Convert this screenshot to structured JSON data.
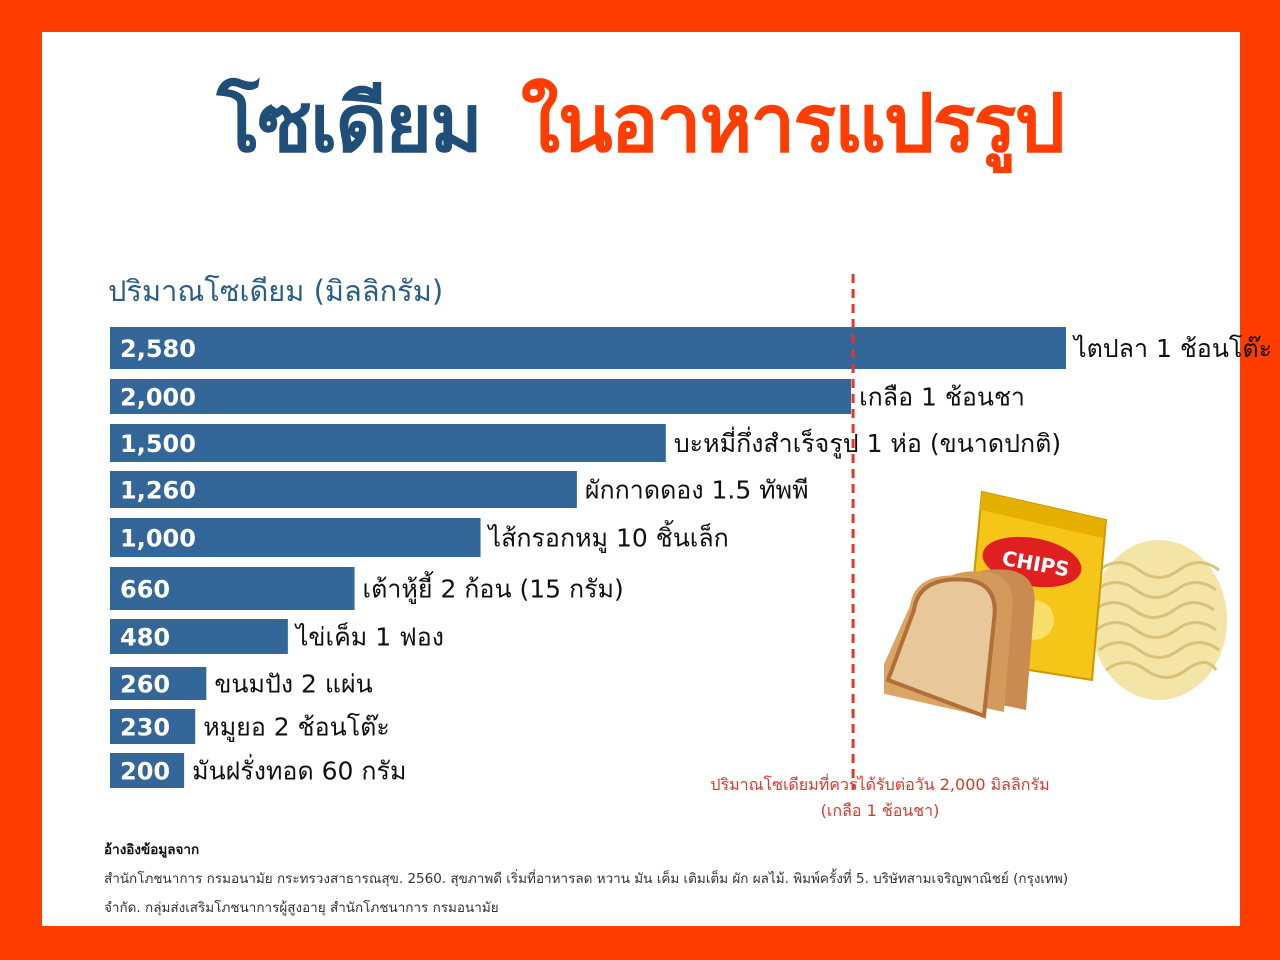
{
  "title": {
    "part1": "โซเดียม",
    "part2": "ในอาหารแปรรูป"
  },
  "chart_data": {
    "type": "bar",
    "orientation": "horizontal",
    "ylabel": "ปริมาณโซเดียม (มิลลิกรัม)",
    "categories": [
      "ไตปลา 1 ช้อนโต๊ะ",
      "เกลือ 1 ช้อนชา",
      "บะหมี่กึ่งสำเร็จรูป  1 ห่อ (ขนาดปกติ)",
      "ผักกาดดอง 1.5 ทัพพี",
      "ไส้กรอกหมู 10 ชิ้นเล็ก",
      "เต้าหู้ยี้ 2 ก้อน (15 กรัม)",
      "ไข่เค็ม 1 ฟอง",
      "ขนมปัง 2 แผ่น",
      "หมูยอ 2 ช้อนโต๊ะ",
      "มันฝรั่งทอด 60 กรัม"
    ],
    "values": [
      2580,
      2000,
      1500,
      1260,
      1000,
      660,
      480,
      260,
      230,
      200
    ],
    "value_labels": [
      "2,580",
      "2,000",
      "1,500",
      "1,260",
      "1,000",
      "660",
      "480",
      "260",
      "230",
      "200"
    ],
    "reference_line": {
      "value": 2000,
      "label_line1": "ปริมาณโซเดียมที่ควรได้รับต่อวัน 2,000 มิลลิกรัม",
      "label_line2": "(เกลือ 1 ช้อนชา)"
    },
    "xlim": [
      0,
      2580
    ]
  },
  "image_text": {
    "chips": "CHIPS"
  },
  "source": {
    "heading": "อ้างอิงข้อมูลจาก",
    "line1": "สำนักโภชนาการ กรมอนามัย กระทรวงสาธารณสุข. 2560. สุขภาพดี เริ่มที่อาหารลด หวาน มัน เค็ม เติมเต็ม ผัก ผลไม้. พิมพ์ครั้งที่ 5. บริษัทสามเจริญพาณิชย์ (กรุงเทพ)",
    "line2": "จำกัด. กลุ่มส่งเสริมโภชนาการผู้สูงอายุ สำนักโภชนาการ กรมอนามัย"
  },
  "colors": {
    "background": "#ff3d00",
    "bar": "#336699",
    "title_blue": "#1f4e79",
    "title_orange": "#ff3d00",
    "reference_line": "#e8352a"
  }
}
